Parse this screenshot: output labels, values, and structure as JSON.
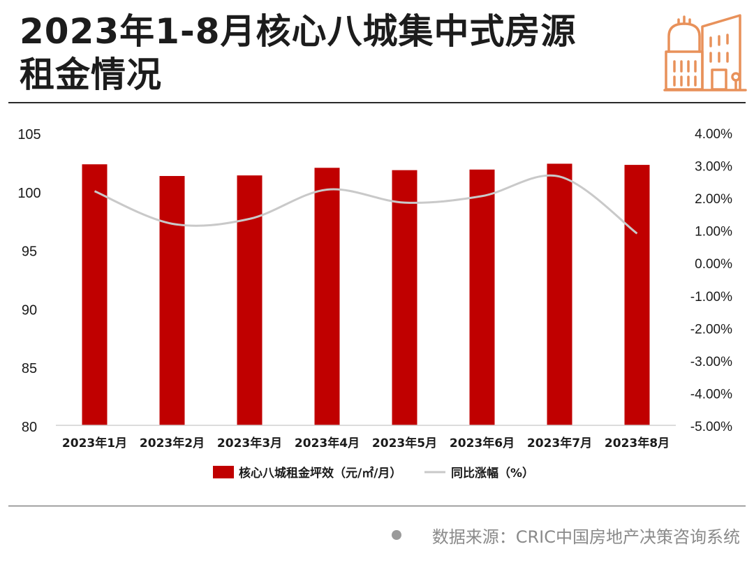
{
  "title": {
    "line1": "2023年1-8月核心八城集中式房源",
    "line2": "租金情况"
  },
  "logo": {
    "icon": "building-icon",
    "color": "#e8915a"
  },
  "source": {
    "text": "数据来源：CRIC中国房地产决策咨询系统"
  },
  "chart_data": {
    "type": "bar",
    "categories": [
      "2023年1月",
      "2023年2月",
      "2023年3月",
      "2023年4月",
      "2023年5月",
      "2023年6月",
      "2023年7月",
      "2023年8月"
    ],
    "series": [
      {
        "name": "核心八城租金坪效（元/㎡/月）",
        "type": "bar",
        "axis": "left",
        "color": "#c00000",
        "values": [
          102.3,
          101.3,
          101.35,
          102.0,
          101.8,
          101.85,
          102.35,
          102.25
        ]
      },
      {
        "name": "同比涨幅（%）",
        "type": "line",
        "axis": "right",
        "color": "#c9c9c9",
        "smooth": true,
        "values": [
          2.2,
          1.2,
          1.35,
          2.25,
          1.85,
          2.05,
          2.65,
          0.9
        ]
      }
    ],
    "y_left": {
      "ylim": [
        80,
        105
      ],
      "ticks": [
        "80",
        "85",
        "90",
        "95",
        "100",
        "105"
      ]
    },
    "y_right": {
      "ylim": [
        -5,
        4
      ],
      "ticks": [
        "-5.00%",
        "-4.00%",
        "-3.00%",
        "-2.00%",
        "-1.00%",
        "0.00%",
        "1.00%",
        "2.00%",
        "3.00%",
        "4.00%"
      ]
    },
    "grid": false,
    "legend": "bottom"
  }
}
